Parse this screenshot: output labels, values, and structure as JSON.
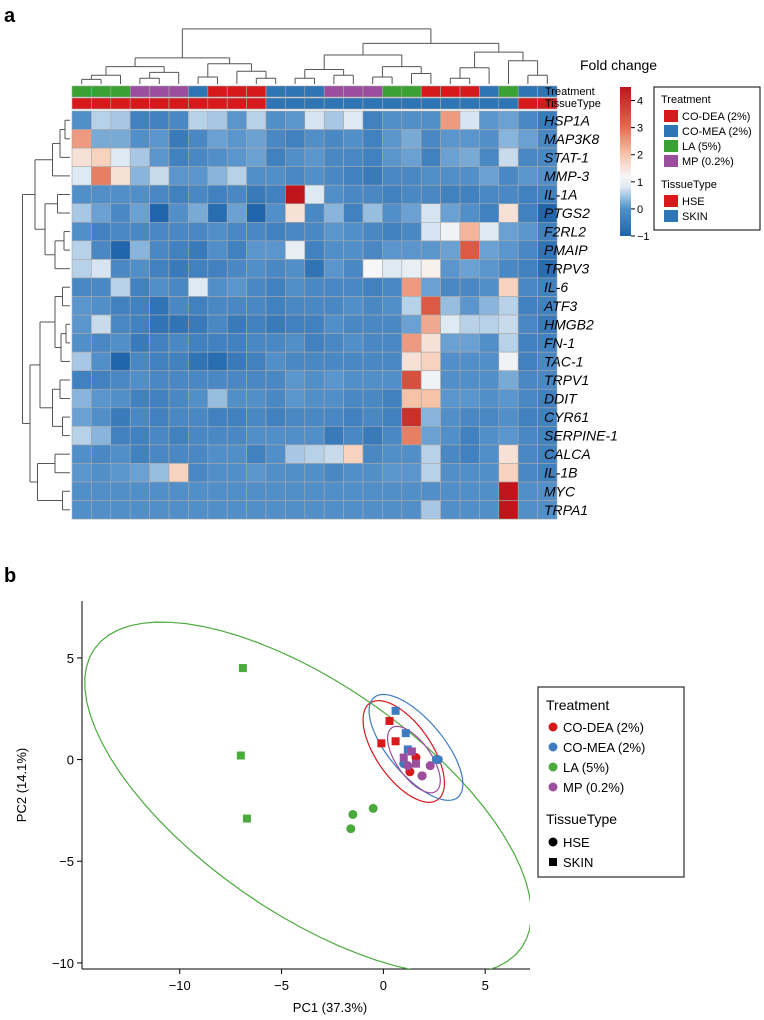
{
  "panel_a": {
    "label": "a",
    "title": "Fold change",
    "colorbar_ticks": [
      "4",
      "3",
      "2",
      "1",
      "0",
      "−1"
    ],
    "annotation_row_labels": [
      "Treatment",
      "TissueType"
    ],
    "legend": {
      "treatment_title": "Treatment",
      "treatment_items": [
        {
          "name": "CO-DEA (2%)",
          "color": "#d7191c"
        },
        {
          "name": "CO-MEA (2%)",
          "color": "#2e75b6"
        },
        {
          "name": "LA (5%)",
          "color": "#3aa233"
        },
        {
          "name": "MP (0.2%)",
          "color": "#9b4d9e"
        }
      ],
      "tissue_title": "TissueType",
      "tissue_items": [
        {
          "name": "HSE",
          "color": "#d7191c"
        },
        {
          "name": "SKIN",
          "color": "#2e75b6"
        }
      ]
    },
    "colors": {
      "low": "#2166ac",
      "mid": "#f7f7f7",
      "high": "#c0141b",
      "grid": "#a9a9a9"
    }
  },
  "panel_b": {
    "label": "b",
    "legend": {
      "treatment_title": "Treatment",
      "treatment_items": [
        {
          "name": "CO-DEA (2%)",
          "color": "#d7191c"
        },
        {
          "name": "CO-MEA (2%)",
          "color": "#3d7cc0"
        },
        {
          "name": "LA (5%)",
          "color": "#4aaa3c"
        },
        {
          "name": "MP (0.2%)",
          "color": "#9b4d9e"
        }
      ],
      "shape_title": "TissueType",
      "shape_items": [
        {
          "name": "HSE",
          "symbol": "circle"
        },
        {
          "name": "SKIN",
          "symbol": "square"
        }
      ]
    }
  },
  "chart_data": [
    {
      "type": "heatmap",
      "title": "Fold change",
      "value_range": [
        -1,
        4.5
      ],
      "colorbar_ticks": [
        4,
        3,
        2,
        1,
        0,
        -1
      ],
      "rows": [
        "HSP1A",
        "MAP3K8",
        "STAT-1",
        "MMP-3",
        "IL-1A",
        "PTGS2",
        "F2RL2",
        "PMAIP",
        "TRPV3",
        "IL-6",
        "ATF3",
        "HMGB2",
        "FN-1",
        "TAC-1",
        "TRPV1",
        "DDIT",
        "CYR61",
        "SERPINE-1",
        "CALCA",
        "IL-1B",
        "MYC",
        "TRPA1"
      ],
      "column_treatment": [
        "LA (5%)",
        "LA (5%)",
        "LA (5%)",
        "MP (0.2%)",
        "MP (0.2%)",
        "MP (0.2%)",
        "CO-MEA (2%)",
        "CO-DEA (2%)",
        "CO-DEA (2%)",
        "CO-DEA (2%)",
        "CO-MEA (2%)",
        "CO-MEA (2%)",
        "CO-MEA (2%)",
        "MP (0.2%)",
        "MP (0.2%)",
        "MP (0.2%)",
        "LA (5%)",
        "LA (5%)",
        "CO-DEA (2%)",
        "CO-DEA (2%)",
        "CO-DEA (2%)",
        "CO-MEA (2%)",
        "LA (5%)",
        "CO-MEA (2%)",
        "CO-MEA (2%)"
      ],
      "column_tissue": [
        "HSE",
        "HSE",
        "HSE",
        "HSE",
        "HSE",
        "HSE",
        "HSE",
        "HSE",
        "HSE",
        "HSE",
        "SKIN",
        "SKIN",
        "SKIN",
        "SKIN",
        "SKIN",
        "SKIN",
        "SKIN",
        "SKIN",
        "SKIN",
        "SKIN",
        "SKIN",
        "SKIN",
        "SKIN",
        "HSE",
        "HSE"
      ],
      "values": [
        [
          -0.4,
          0.3,
          0.2,
          -0.6,
          -0.6,
          -0.5,
          0.3,
          0.2,
          -0.3,
          0.3,
          -0.4,
          -0.3,
          0.5,
          0.2,
          0.6,
          -0.6,
          -0.4,
          -0.4,
          -0.4,
          2.2,
          0.5,
          -0.3,
          -0.2,
          -0.5,
          -0.7
        ],
        [
          2.2,
          -0.1,
          -0.1,
          -0.4,
          -0.3,
          -0.7,
          -0.5,
          -0.2,
          -0.3,
          -0.2,
          -0.5,
          -0.6,
          -0.4,
          -0.5,
          -0.4,
          -0.6,
          -0.3,
          -0.1,
          -0.5,
          -0.3,
          -0.3,
          -0.4,
          0.0,
          -0.2,
          -0.5
        ],
        [
          1.2,
          1.4,
          0.6,
          0.2,
          -0.3,
          -0.6,
          -0.5,
          -0.4,
          -0.3,
          -0.2,
          -0.6,
          -0.4,
          -0.3,
          -0.5,
          -0.5,
          -0.6,
          -0.3,
          -0.2,
          -0.6,
          -0.2,
          -0.1,
          -0.5,
          0.4,
          -0.5,
          -0.5
        ],
        [
          0.6,
          2.6,
          1.2,
          0.0,
          0.4,
          -0.3,
          -0.3,
          0.0,
          0.3,
          -0.4,
          -0.4,
          -0.5,
          -0.4,
          -0.5,
          -0.6,
          -0.7,
          -0.5,
          -0.5,
          -0.4,
          -0.4,
          -0.4,
          -0.2,
          -0.5,
          -0.3,
          -0.4
        ],
        [
          -0.4,
          -0.4,
          -0.4,
          -0.4,
          -0.5,
          -0.6,
          -0.5,
          -0.6,
          -0.5,
          -0.7,
          -0.6,
          4.5,
          0.6,
          -0.4,
          -0.5,
          -0.5,
          -0.6,
          -0.5,
          -0.5,
          -0.6,
          -0.6,
          -0.5,
          -0.5,
          -0.6,
          -0.6
        ],
        [
          0.2,
          -0.2,
          -0.5,
          -0.2,
          -1.0,
          -0.4,
          -0.1,
          -0.9,
          -0.2,
          -1.0,
          -0.4,
          1.2,
          -0.5,
          0.0,
          -0.6,
          0.1,
          -0.4,
          -0.2,
          0.5,
          -0.2,
          -0.4,
          -0.6,
          1.2,
          -0.6,
          -1.0
        ],
        [
          -0.4,
          -0.6,
          -0.5,
          -0.5,
          -0.5,
          -0.5,
          -0.5,
          -0.4,
          -0.5,
          -0.5,
          -0.6,
          -0.5,
          -0.5,
          -0.3,
          -0.4,
          -0.5,
          -0.6,
          -0.5,
          0.5,
          0.8,
          1.8,
          0.6,
          -0.2,
          -0.3,
          -0.6
        ],
        [
          0.3,
          -0.5,
          -1.0,
          0.0,
          -0.5,
          -0.6,
          -0.7,
          -0.4,
          -0.6,
          -0.3,
          -0.3,
          0.7,
          -0.6,
          -0.4,
          -0.4,
          -0.5,
          -0.3,
          -0.3,
          -0.3,
          -0.2,
          3.2,
          -0.2,
          -0.3,
          -0.5,
          -0.8
        ],
        [
          0.3,
          0.5,
          -0.5,
          -0.4,
          -0.6,
          -0.7,
          -0.6,
          -0.6,
          -0.5,
          -0.4,
          -0.5,
          -0.4,
          -0.8,
          -0.3,
          -0.5,
          0.9,
          0.6,
          0.7,
          1.0,
          -0.3,
          -0.2,
          -0.3,
          -0.5,
          -0.6,
          -0.9
        ],
        [
          -0.5,
          -0.5,
          0.3,
          -0.6,
          -0.4,
          -0.5,
          0.6,
          -0.4,
          -0.3,
          -0.5,
          -0.6,
          -0.4,
          -0.5,
          -0.5,
          -0.5,
          -0.6,
          -0.5,
          2.2,
          -0.2,
          -0.5,
          -0.5,
          -0.4,
          1.4,
          -0.5,
          -0.6
        ],
        [
          -0.3,
          -0.4,
          -0.6,
          -0.6,
          -0.8,
          -0.5,
          -0.6,
          -0.5,
          -0.5,
          -0.5,
          -0.6,
          -0.5,
          -0.5,
          -0.5,
          -0.4,
          -0.5,
          -0.4,
          0.3,
          3.2,
          0.1,
          -0.3,
          0.0,
          0.3,
          -0.6,
          -0.6
        ],
        [
          -0.3,
          0.4,
          -0.5,
          -0.6,
          -0.8,
          -0.8,
          -0.7,
          -0.5,
          -0.7,
          -0.6,
          -0.7,
          -0.6,
          -0.6,
          -0.4,
          -0.5,
          -0.5,
          -0.5,
          -0.2,
          2.0,
          0.6,
          0.3,
          0.3,
          0.4,
          -0.5,
          -0.7
        ],
        [
          -0.4,
          -0.5,
          -0.4,
          -0.7,
          -0.6,
          -0.5,
          -0.6,
          -0.6,
          -0.6,
          -0.5,
          -0.5,
          -0.4,
          -0.6,
          -0.5,
          -0.4,
          -0.5,
          -0.5,
          2.2,
          1.2,
          -0.2,
          -0.2,
          -0.4,
          0.3,
          -0.6,
          -0.6
        ],
        [
          0.2,
          -0.4,
          -1.0,
          -0.5,
          -0.6,
          -0.6,
          -0.8,
          -0.9,
          -0.7,
          -0.6,
          -0.4,
          -0.5,
          -0.5,
          -0.5,
          -0.5,
          -0.5,
          -0.5,
          1.2,
          1.4,
          -0.4,
          -0.4,
          -0.4,
          0.8,
          -0.6,
          -0.5
        ],
        [
          -0.6,
          -0.6,
          -0.5,
          -0.4,
          -0.5,
          -0.5,
          -0.5,
          -0.5,
          -0.5,
          -0.5,
          -0.5,
          -0.3,
          -0.4,
          -0.3,
          -0.4,
          -0.4,
          -0.4,
          3.4,
          0.8,
          -0.4,
          -0.4,
          -0.4,
          -0.1,
          -0.5,
          -0.5
        ],
        [
          0.0,
          -0.3,
          -0.4,
          -0.6,
          -0.6,
          -0.5,
          -0.4,
          0.1,
          -0.4,
          -0.4,
          -0.5,
          -0.3,
          -0.4,
          -0.4,
          -0.5,
          -0.5,
          -0.6,
          1.6,
          1.6,
          -0.3,
          -0.3,
          -0.4,
          -0.3,
          -0.5,
          -0.6
        ],
        [
          -0.2,
          -0.4,
          -0.7,
          -0.5,
          -0.6,
          -0.5,
          -0.5,
          -0.6,
          -0.6,
          -0.5,
          -0.6,
          -0.5,
          -0.5,
          -0.5,
          -0.6,
          -0.5,
          -0.6,
          4.0,
          0.0,
          -0.4,
          -0.5,
          -0.5,
          -0.4,
          -0.6,
          -0.6
        ],
        [
          0.3,
          0.0,
          -0.6,
          -0.6,
          -0.5,
          -0.6,
          -0.5,
          -0.5,
          -0.5,
          -0.4,
          -0.4,
          -0.4,
          -0.4,
          -0.7,
          -0.5,
          -0.7,
          -0.5,
          2.6,
          -0.2,
          -0.4,
          -0.6,
          -0.4,
          -0.3,
          -0.5,
          -0.6
        ],
        [
          -0.4,
          -0.5,
          -0.4,
          -0.6,
          -0.5,
          -0.5,
          -0.5,
          -0.4,
          -0.4,
          -0.6,
          -0.4,
          0.2,
          0.3,
          0.4,
          1.4,
          -0.5,
          -0.4,
          -0.4,
          0.3,
          -0.5,
          -0.6,
          -0.4,
          1.2,
          -0.5,
          -0.6
        ],
        [
          -0.3,
          -0.4,
          -0.3,
          -0.2,
          0.1,
          1.4,
          -0.5,
          -0.4,
          -0.4,
          -0.3,
          -0.4,
          -0.4,
          -0.4,
          -0.5,
          -0.4,
          -0.4,
          -0.3,
          -0.3,
          0.3,
          -0.4,
          -0.4,
          -0.4,
          1.4,
          -0.5,
          -0.6
        ],
        [
          -0.4,
          -0.4,
          -0.4,
          -0.4,
          -0.4,
          -0.4,
          -0.4,
          -0.4,
          -0.4,
          -0.4,
          -0.4,
          -0.4,
          -0.4,
          -0.4,
          -0.4,
          -0.4,
          -0.4,
          -0.4,
          -0.4,
          -0.4,
          -0.4,
          -0.4,
          4.5,
          -0.4,
          -0.4
        ],
        [
          -0.4,
          -0.4,
          -0.4,
          -0.4,
          -0.4,
          -0.4,
          -0.4,
          -0.4,
          -0.4,
          -0.4,
          -0.4,
          -0.4,
          -0.4,
          -0.4,
          -0.4,
          -0.4,
          -0.4,
          -0.4,
          0.2,
          -0.4,
          -0.4,
          -0.4,
          4.5,
          -0.4,
          -0.4
        ]
      ]
    },
    {
      "type": "scatter",
      "title": "",
      "xlabel": "PC1 (37.3%)",
      "ylabel": "PC2 (14.1%)",
      "xlim": [
        -14.8,
        7.2
      ],
      "ylim": [
        -10.3,
        7.8
      ],
      "xticks": [
        -10,
        -5,
        0,
        5
      ],
      "yticks": [
        5,
        0,
        -5,
        -10
      ],
      "tick_labels_x": [
        "−10",
        "−5",
        "0",
        "5"
      ],
      "tick_labels_y": [
        "5",
        "0",
        "−5",
        "−10"
      ],
      "grid": false,
      "legend_position": "right",
      "series": [
        {
          "name": "LA (5%)",
          "color": "#4aaa3c",
          "points": [
            {
              "x": -6.9,
              "y": 4.5,
              "shape": "square"
            },
            {
              "x": -7.0,
              "y": 0.2,
              "shape": "square"
            },
            {
              "x": -6.7,
              "y": -2.9,
              "shape": "square"
            },
            {
              "x": -1.5,
              "y": -2.7,
              "shape": "circle"
            },
            {
              "x": -1.6,
              "y": -3.4,
              "shape": "circle"
            },
            {
              "x": -0.5,
              "y": -2.4,
              "shape": "circle"
            }
          ],
          "ellipse": {
            "cx": -3.7,
            "cy": -1.9,
            "rx": 12.8,
            "ry": 5.6,
            "angle_deg": -35
          }
        },
        {
          "name": "CO-DEA (2%)",
          "color": "#d7191c",
          "points": [
            {
              "x": 0.3,
              "y": 1.9,
              "shape": "square"
            },
            {
              "x": -0.1,
              "y": 0.8,
              "shape": "square"
            },
            {
              "x": 0.6,
              "y": 0.9,
              "shape": "square"
            },
            {
              "x": 1.6,
              "y": 0.1,
              "shape": "circle"
            },
            {
              "x": 1.3,
              "y": -0.6,
              "shape": "circle"
            },
            {
              "x": 1.9,
              "y": -0.8,
              "shape": "circle"
            }
          ],
          "ellipse": {
            "cx": 1.0,
            "cy": 0.4,
            "rx": 2.9,
            "ry": 1.35,
            "angle_deg": -55
          }
        },
        {
          "name": "CO-MEA (2%)",
          "color": "#3d7cc0",
          "points": [
            {
              "x": 0.6,
              "y": 2.4,
              "shape": "square"
            },
            {
              "x": 1.1,
              "y": 1.3,
              "shape": "square"
            },
            {
              "x": 1.2,
              "y": 0.5,
              "shape": "square"
            },
            {
              "x": 2.6,
              "y": 0.0,
              "shape": "circle"
            },
            {
              "x": 2.7,
              "y": 0.0,
              "shape": "circle"
            },
            {
              "x": 1.0,
              "y": -0.2,
              "shape": "circle"
            }
          ],
          "ellipse": {
            "cx": 1.6,
            "cy": 0.6,
            "rx": 3.2,
            "ry": 1.35,
            "angle_deg": -50
          }
        },
        {
          "name": "MP (0.2%)",
          "color": "#9b4d9e",
          "points": [
            {
              "x": 1.4,
              "y": 0.4,
              "shape": "square"
            },
            {
              "x": 1.0,
              "y": 0.1,
              "shape": "square"
            },
            {
              "x": 1.6,
              "y": -0.2,
              "shape": "square"
            },
            {
              "x": 1.2,
              "y": -0.3,
              "shape": "circle"
            },
            {
              "x": 2.3,
              "y": -0.3,
              "shape": "circle"
            },
            {
              "x": 1.9,
              "y": -0.8,
              "shape": "circle"
            }
          ],
          "ellipse": {
            "cx": 1.5,
            "cy": 0.0,
            "rx": 1.9,
            "ry": 0.85,
            "angle_deg": -55
          }
        }
      ]
    }
  ]
}
